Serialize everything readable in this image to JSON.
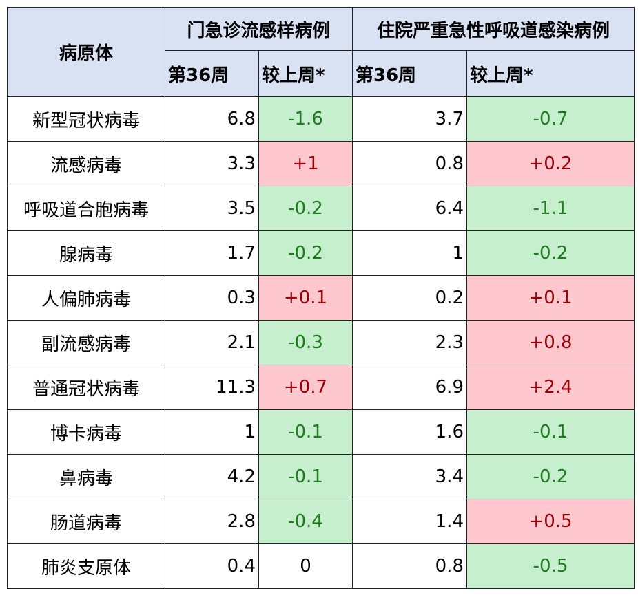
{
  "header": {
    "pathogen": "病原体",
    "groups": [
      {
        "title": "门急诊流感样病例",
        "columns": [
          "第36周",
          "较上周*"
        ]
      },
      {
        "title": "住院严重急性呼吸道感染病例",
        "columns": [
          "第36周",
          "较上周*"
        ]
      }
    ]
  },
  "table": {
    "rows": [
      [
        "新型冠状病毒",
        6.8,
        "-1.6",
        3.7,
        "-0.7"
      ],
      [
        "流感病毒",
        3.3,
        "+1",
        0.8,
        "+0.2"
      ],
      [
        "呼吸道合胞病毒",
        3.5,
        "-0.2",
        6.4,
        "-1.1"
      ],
      [
        "腺病毒",
        1.7,
        "-0.2",
        1,
        "-0.2"
      ],
      [
        "人偏肺病毒",
        0.3,
        "+0.1",
        0.2,
        "+0.1"
      ],
      [
        "副流感病毒",
        2.1,
        "-0.3",
        2.3,
        "+0.8"
      ],
      [
        "普通冠状病毒",
        11.3,
        "+0.7",
        6.9,
        "+2.4"
      ],
      [
        "博卡病毒",
        1,
        "-0.1",
        1.6,
        "-0.1"
      ],
      [
        "鼻病毒",
        4.2,
        "-0.1",
        3.4,
        "-0.2"
      ],
      [
        "肠道病毒",
        2.8,
        "-0.4",
        1.4,
        "+0.5"
      ],
      [
        "肺炎支原体",
        0.4,
        "0",
        0.8,
        "-0.5"
      ]
    ]
  }
}
